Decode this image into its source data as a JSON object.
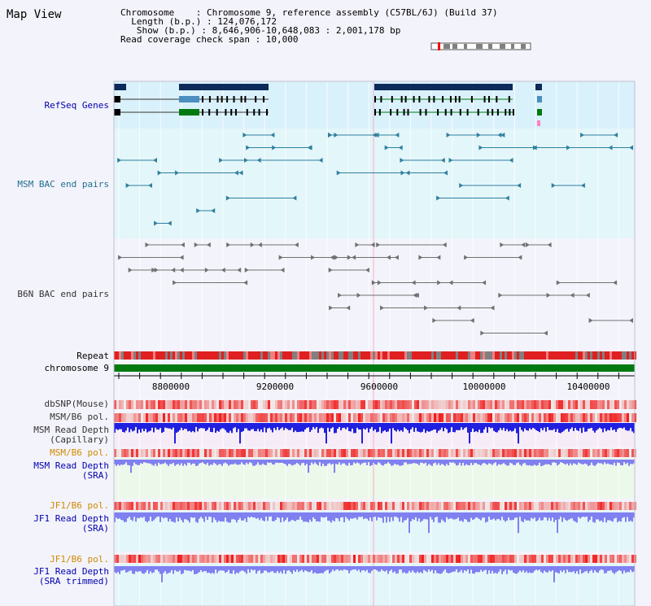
{
  "title": "Map View",
  "info": {
    "chromosome": "Chromosome    : Chromosome 9, reference assembly (C57BL/6J) (Build 37)",
    "length": "  Length (b.p.) : 124,076,172",
    "show": "   Show (b.p.) : 8,646,906-10,648,083 : 2,001,178 bp",
    "span": "Read coverage check span : 10,000"
  },
  "tracks": {
    "refseq": "RefSeq Genes",
    "msm_bac": "MSM BAC end pairs",
    "b6n_bac": "B6N BAC end pairs",
    "repeat": "Repeat",
    "chromosome": "chromosome 9",
    "dbsnp": "dbSNP(Mouse)",
    "msm_b6_pol_1": "MSM/B6 pol.",
    "msm_read_depth_cap_1": "MSM Read Depth",
    "msm_read_depth_cap_2": "(Capillary)",
    "msm_b6_pol_2": "MSM/B6 pol.",
    "msm_read_depth_sra_1": "MSM Read Depth",
    "msm_read_depth_sra_2": "(SRA)",
    "jf1_b6_pol_1": "JF1/B6 pol.",
    "jf1_read_depth_sra_1": "JF1 Read Depth",
    "jf1_read_depth_sra_2": "(SRA)",
    "jf1_b6_pol_2": "JF1/B6 pol.",
    "jf1_read_depth_trim_1": "JF1 Read Depth",
    "jf1_read_depth_trim_2": "(SRA trimmed)"
  },
  "axis": {
    "ticks": [
      "8800000",
      "9200000",
      "9600000",
      "10000000",
      "10400000"
    ]
  },
  "colors": {
    "refseq_bg": "#d9f1fb",
    "msm_bg": "#e3f6f9",
    "b6n_bg": "#f3f3fb",
    "gene_dark": "#0c2a5a",
    "gene_mid": "#4a8fc0",
    "gene_green": "#007a10",
    "chromosome_bar": "#007a10",
    "repeat_red": "#e02020",
    "depth_blue": "#2020e0",
    "depth_light": "#8080f0"
  }
}
